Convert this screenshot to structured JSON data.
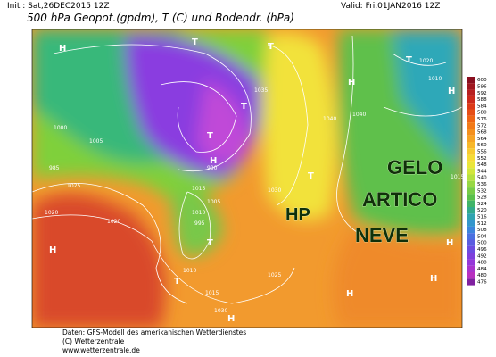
{
  "header": {
    "init": "Init : Sat,26DEC2015 12Z",
    "valid": "Valid: Fri,01JAN2016 12Z",
    "title": "500 hPa Geopot.(gpdm), T (C) und Bodendr. (hPa)"
  },
  "annotations": {
    "gelo": "GELO",
    "artico": "ARTICO",
    "neve": "NEVE",
    "hp": "HP"
  },
  "colorbar": {
    "labels": [
      "600",
      "596",
      "592",
      "588",
      "584",
      "580",
      "576",
      "572",
      "568",
      "564",
      "560",
      "556",
      "552",
      "548",
      "544",
      "540",
      "536",
      "532",
      "528",
      "524",
      "520",
      "516",
      "512",
      "508",
      "504",
      "500",
      "496",
      "492",
      "488",
      "484",
      "480",
      "476"
    ]
  },
  "map_labels": {
    "pressure": [
      "1025",
      "1020",
      "1015",
      "1010",
      "1005",
      "995",
      "990",
      "1000",
      "1005",
      "985",
      "1010",
      "1015",
      "1025",
      "1030",
      "1040",
      "1040",
      "1035",
      "1030",
      "1020",
      "1010",
      "1015",
      "1020"
    ],
    "centers": [
      "H",
      "H",
      "H",
      "H",
      "H",
      "H",
      "H",
      "H",
      "H",
      "T",
      "T",
      "T",
      "T",
      "T",
      "T",
      "T",
      "T"
    ]
  },
  "footer": {
    "source": "Daten: GFS-Modell des amerikanischen Wetterdienstes",
    "copyright": "(C) Wetterzentrale",
    "url": "www.wetterzentrale.de"
  }
}
